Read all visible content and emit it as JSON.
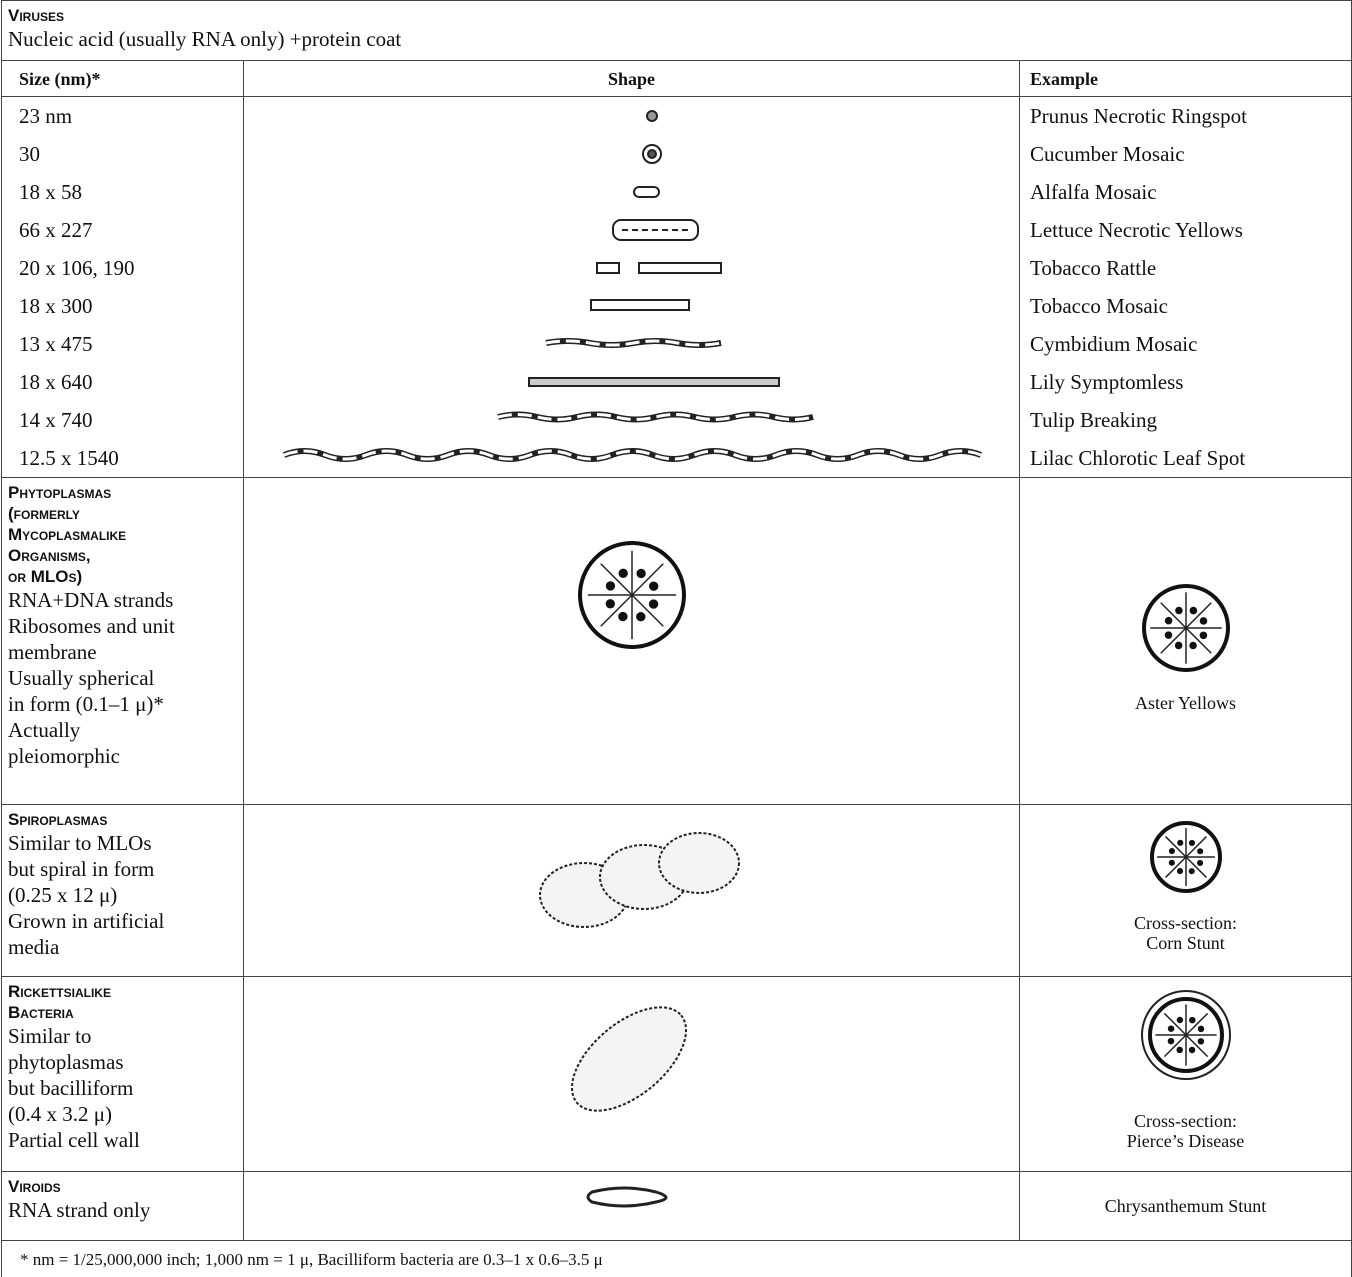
{
  "viruses": {
    "title": "Viruses",
    "description": "Nucleic acid (usually RNA only) +protein coat",
    "headers": [
      "Size (nm)*",
      "Shape",
      "Example"
    ],
    "rows": [
      {
        "size": "23 nm",
        "example": "Prunus Necrotic Ringspot"
      },
      {
        "size": "30",
        "example": "Cucumber Mosaic"
      },
      {
        "size": "18 x 58",
        "example": "Alfalfa Mosaic"
      },
      {
        "size": "66 x 227",
        "example": "Lettuce Necrotic Yellows"
      },
      {
        "size": "20 x 106, 190",
        "example": "Tobacco Rattle"
      },
      {
        "size": "18 x 300",
        "example": "Tobacco Mosaic"
      },
      {
        "size": "13 x 475",
        "example": "Cymbidium Mosaic"
      },
      {
        "size": "18 x 640",
        "example": "Lily Symptomless"
      },
      {
        "size": "14 x 740",
        "example": "Tulip Breaking"
      },
      {
        "size": "12.5 x 1540",
        "example": "Lilac Chlorotic Leaf Spot"
      }
    ]
  },
  "sections": [
    {
      "title": [
        "Phytoplasmas",
        "(formerly",
        "Mycoplasmalike",
        "Organisms,",
        "or MLOs)"
      ],
      "lines": [
        "RNA+DNA strands",
        "Ribosomes and unit",
        "membrane",
        "Usually spherical",
        "in form (0.1–1 μ)*",
        "Actually",
        "pleiomorphic"
      ],
      "example": [
        "Aster Yellows"
      ]
    },
    {
      "title": [
        "Spiroplasmas"
      ],
      "lines": [
        "Similar to MLOs",
        "but spiral in form",
        "(0.25 x 12 μ)",
        "Grown in artificial",
        "media"
      ],
      "example": [
        "Cross-section:",
        "Corn Stunt"
      ]
    },
    {
      "title": [
        "Rickettsialike",
        "Bacteria"
      ],
      "lines": [
        "Similar to",
        "phytoplasmas",
        "but bacilliform",
        "(0.4 x 3.2 μ)",
        "Partial cell wall"
      ],
      "example": [
        "Cross-section:",
        "Pierce’s Disease"
      ]
    },
    {
      "title": [
        "Viroids"
      ],
      "lines": [
        "RNA strand only"
      ],
      "example": [
        "Chrysanthemum Stunt"
      ]
    }
  ],
  "footnote": "* nm = 1/25,000,000 inch; 1,000 nm = 1 μ, Bacilliform bacteria are 0.3–1 x 0.6–3.5 μ"
}
